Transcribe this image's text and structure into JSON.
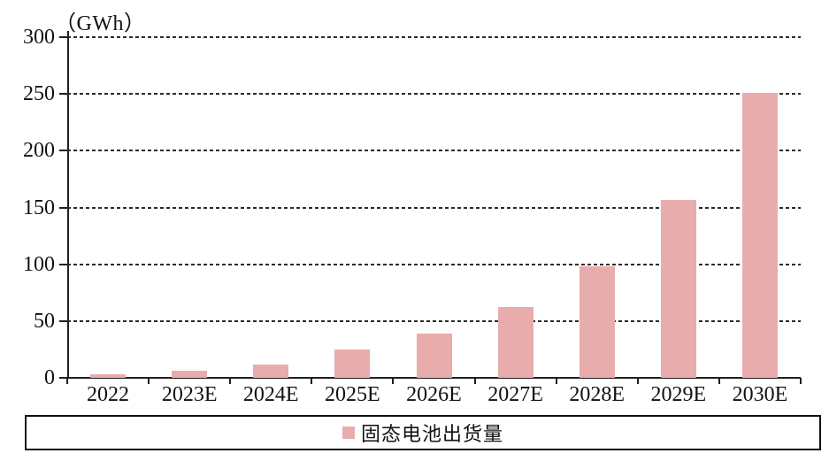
{
  "unit_label": "（GWh）",
  "legend": {
    "label": "固态电池出货量",
    "marker_color": "#E9ACAC",
    "position": "bottom",
    "boxed": true
  },
  "colors": {
    "bar": "#E9ACAC",
    "axis": "#1f1f1f",
    "grid": "#2b2b2b",
    "text": "#111111",
    "legend_border": "#111111"
  },
  "chart_data": {
    "type": "bar",
    "title": "",
    "unit_label": "（GWh）",
    "categories": [
      "2022",
      "2023E",
      "2024E",
      "2025E",
      "2026E",
      "2027E",
      "2028E",
      "2029E",
      "2030E"
    ],
    "series": [
      {
        "name": "固态电池出货量",
        "values": [
          3,
          6,
          12,
          25,
          39,
          62,
          98,
          157,
          251
        ]
      }
    ],
    "xlabel": "",
    "ylabel": "（GWh）",
    "ylim": [
      0,
      300
    ],
    "yticks": [
      0,
      50,
      100,
      150,
      200,
      250,
      300
    ],
    "grid": "horizontal-dashed",
    "legend_position": "bottom"
  }
}
